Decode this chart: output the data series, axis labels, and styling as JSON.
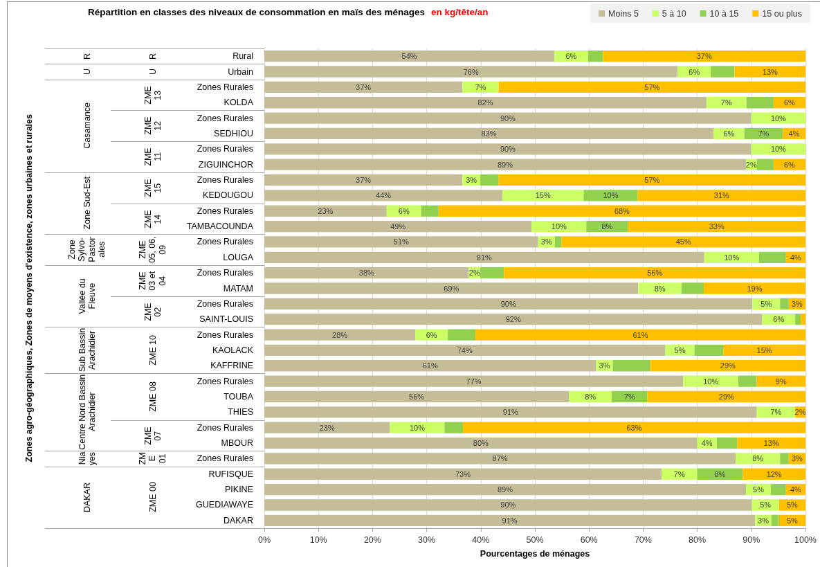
{
  "chart_data": {
    "type": "bar",
    "orientation": "horizontal",
    "stacked": true,
    "title": "Répartition en classes des niveaux de consommation en maïs des ménages",
    "subtitle": "en kg/tête/an",
    "xlabel": "Pourcentages de ménages",
    "categories": [
      "Rural",
      "Urbain",
      "Zones Rurales",
      "KOLDA",
      "Zones Rurales",
      "SEDHIOU",
      "Zones Rurales",
      "ZIGUINCHOR",
      "Zones Rurales",
      "KEDOUGOU",
      "Zones Rurales",
      "TAMBACOUNDA",
      "Zones Rurales",
      "LOUGA",
      "Zones Rurales",
      "MATAM",
      "Zones Rurales",
      "SAINT-LOUIS",
      "Zones Rurales",
      "KAOLACK",
      "KAFFRINE",
      "Zones Rurales",
      "TOUBA",
      "THIES",
      "Zones Rurales",
      "MBOUR",
      "Zones Rurales",
      "RUFISQUE",
      "PIKINE",
      "GUEDIAWAYE",
      "DAKAR"
    ],
    "series": [
      {
        "name": "Moins 5",
        "color": "#c4bd97",
        "values": [
          53.6,
          76.4,
          36.6,
          81.7,
          90.0,
          83.0,
          90.0,
          89.0,
          36.6,
          44.0,
          22.6,
          49.4,
          50.6,
          81.3,
          37.8,
          69.1,
          90.2,
          92.0,
          27.9,
          74.1,
          61.3,
          77.4,
          56.3,
          91.0,
          23.2,
          80.0,
          87.1,
          73.4,
          89.0,
          90.1,
          90.7
        ],
        "value_labels": [
          "54%",
          "76%",
          "37%",
          "82%",
          "90%",
          "83%",
          "90%",
          "89%",
          "37%",
          "44%",
          "23%",
          "49%",
          "51%",
          "81%",
          "38%",
          "69%",
          "90%",
          "92%",
          "28%",
          "74%",
          "61%",
          "77%",
          "56%",
          "91%",
          "23%",
          "80%",
          "87%",
          "73%",
          "89%",
          "90%",
          "91%"
        ]
      },
      {
        "name": "5 à 10",
        "color": "#ccff66",
        "values": [
          6.2,
          6.1,
          6.7,
          7.4,
          10.0,
          5.7,
          10.0,
          2.0,
          3.3,
          15.0,
          6.4,
          10.1,
          3.1,
          10.1,
          2.1,
          8.0,
          5.1,
          6.1,
          6.0,
          5.4,
          3.1,
          10.2,
          7.9,
          7.1,
          10.1,
          3.6,
          8.2,
          6.6,
          4.6,
          5.0,
          3.0
        ],
        "value_labels": [
          "6%",
          "6%",
          "7%",
          "7%",
          "10%",
          "6%",
          "10%",
          "2%",
          "3%",
          "15%",
          "6%",
          "10%",
          "3%",
          "10%",
          "2%",
          "8%",
          "5%",
          "6%",
          "6%",
          "5%",
          "3%",
          "10%",
          "8%",
          "7%",
          "10%",
          "4%",
          "8%",
          "7%",
          "5%",
          "5%",
          "3%"
        ]
      },
      {
        "name": "10 à 15",
        "color": "#92d050",
        "values": [
          2.8,
          4.4,
          null,
          5.0,
          null,
          7.1,
          null,
          3.1,
          3.4,
          10.0,
          3.2,
          7.7,
          1.2,
          5.0,
          4.4,
          4.1,
          1.6,
          1.0,
          5.1,
          5.3,
          6.9,
          3.4,
          6.6,
          null,
          3.4,
          3.8,
          1.6,
          8.4,
          2.8,
          null,
          1.4
        ],
        "value_labels": [
          null,
          null,
          null,
          null,
          null,
          "7%",
          null,
          null,
          null,
          "10%",
          null,
          "8%",
          null,
          null,
          null,
          null,
          null,
          null,
          null,
          null,
          null,
          null,
          "7%",
          null,
          null,
          null,
          null,
          "8%",
          null,
          null,
          null
        ]
      },
      {
        "name": "15 ou plus",
        "color": "#ffc000",
        "values": [
          37.4,
          13.1,
          56.7,
          5.9,
          null,
          4.2,
          null,
          5.9,
          56.7,
          31.0,
          67.8,
          32.8,
          45.1,
          3.6,
          55.7,
          18.8,
          3.1,
          0.9,
          61.0,
          15.2,
          28.7,
          9.0,
          29.2,
          1.9,
          63.3,
          12.6,
          3.1,
          11.6,
          3.6,
          4.9,
          4.9
        ],
        "value_labels": [
          "37%",
          "13%",
          "57%",
          "6%",
          null,
          "4%",
          null,
          "6%",
          "57%",
          "31%",
          "68%",
          "33%",
          "45%",
          "4%",
          "56%",
          "19%",
          "3%",
          null,
          "61%",
          "15%",
          "29%",
          "9%",
          "29%",
          "2%",
          "63%",
          "13%",
          "3%",
          "12%",
          "4%",
          "5%",
          "5%"
        ]
      }
    ],
    "xlim": [
      0,
      100
    ],
    "xticks": [
      {
        "value": 0,
        "label": "0%"
      },
      {
        "value": 10,
        "label": "10%"
      },
      {
        "value": 20,
        "label": "20%"
      },
      {
        "value": 30,
        "label": "30%"
      },
      {
        "value": 40,
        "label": "40%"
      },
      {
        "value": 50,
        "label": "50%"
      },
      {
        "value": 60,
        "label": "60%"
      },
      {
        "value": 70,
        "label": "70%"
      },
      {
        "value": 80,
        "label": "80%"
      },
      {
        "value": 90,
        "label": "90%"
      },
      {
        "value": 100,
        "label": "100%"
      }
    ],
    "grid": "x",
    "legend": "top right",
    "annotations": [
      "Zones agro-géographiques, Zones de moyens d'existence, zones urbaines et rurales",
      "R",
      "R",
      "U",
      "U",
      "Casamance",
      "ZME 13",
      "ZME 12",
      "ZME 11",
      "Zone Sud-Est",
      "ZME 15",
      "ZME 14",
      "Zone Sylvo-Pastorales",
      "ZME 05, 06, 09",
      "Vallée du Fleuve",
      "ZME 03 et 04",
      "ZME 02",
      "Sub Bassin Arachidier",
      "ZME 10",
      "Centre Nord Bassin Arachidier",
      "ZME 08",
      "ZME 07",
      "Niayes",
      "ZME 01",
      "DAKAR",
      "ZME 00"
    ]
  }
}
